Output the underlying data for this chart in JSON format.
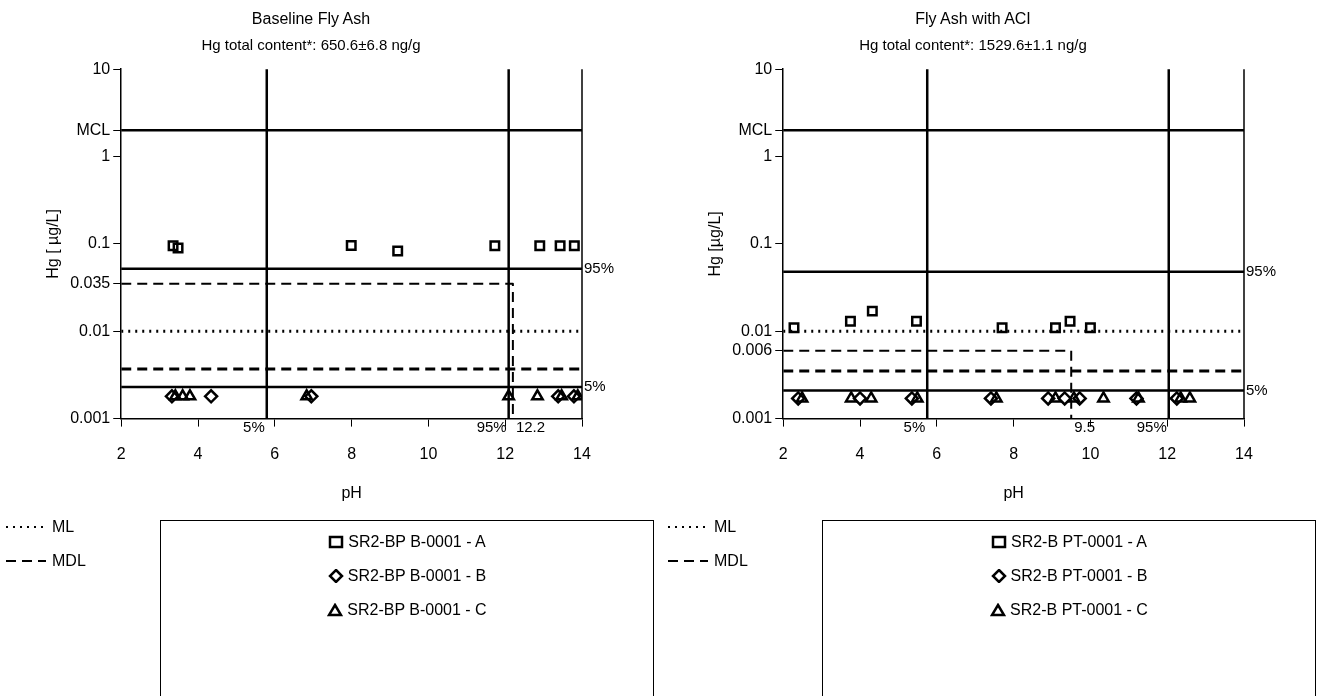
{
  "chart_data": [
    {
      "type": "scatter",
      "title": "Baseline Fly Ash",
      "subtitle": "Hg total content*: 650.6±6.8 ng/g",
      "xlabel": "pH",
      "ylabel": "Hg [ µg/L]",
      "log": "y",
      "grid": false,
      "legend": "bottom",
      "xlim": [
        2,
        14
      ],
      "xticks": [
        2,
        4,
        6,
        8,
        10,
        12,
        14
      ],
      "ylim": [
        0.001,
        10
      ],
      "yticks": [
        0.001,
        0.01,
        0.035,
        0.1,
        1,
        {
          "value": 2,
          "label": "MCL"
        },
        10
      ],
      "series": [
        {
          "name": "ML",
          "type": "line",
          "x": [
            2,
            14
          ],
          "values": [
            0.01,
            0.01
          ],
          "color": "#000000",
          "line_style": "dotted",
          "marker": "none"
        },
        {
          "name": "MDL",
          "type": "line",
          "x": [
            2,
            14
          ],
          "values": [
            0.0037,
            0.0037
          ],
          "color": "#000000",
          "line_style": "dashed",
          "marker": "none"
        },
        {
          "type": "line",
          "x": [
            2,
            12.2,
            12.2
          ],
          "values": [
            0.035,
            0.035,
            0.001
          ],
          "color": "#000000",
          "line_style": "dashed",
          "marker": "none"
        },
        {
          "name": "SR2-BP B-0001 - A",
          "x": [
            3.35,
            3.48,
            7.99,
            9.2,
            11.73,
            12.9,
            13.43,
            13.8
          ],
          "values": [
            0.095,
            0.09,
            0.096,
            0.083,
            0.095,
            0.095,
            0.095,
            0.095
          ],
          "color": "#000000",
          "marker": "square"
        },
        {
          "name": "SR2-BP B-0001 - B",
          "x": [
            3.32,
            4.34,
            6.95,
            13.38,
            13.79
          ],
          "values": [
            0.0018,
            0.0018,
            0.0018,
            0.0018,
            0.0018
          ],
          "color": "#000000",
          "marker": "diamond"
        },
        {
          "name": "SR2-BP B-0001 - C",
          "x": [
            3.41,
            3.6,
            3.79,
            6.83,
            12.09,
            12.84,
            13.47,
            13.89
          ],
          "values": [
            0.0018,
            0.0018,
            0.0018,
            0.0018,
            0.0018,
            0.0018,
            0.0018,
            0.0018
          ],
          "color": "#000000",
          "marker": "triangle"
        }
      ],
      "ref_lines": [
        {
          "axis": "y",
          "value": 2
        },
        {
          "axis": "y",
          "value": 0.052
        },
        {
          "axis": "y",
          "value": 0.0023
        },
        {
          "axis": "x",
          "value": 5.79
        },
        {
          "axis": "x",
          "value": 12.09
        }
      ],
      "annotations": [
        {
          "text": "95%",
          "x": 14,
          "y": 0.052
        },
        {
          "text": "5%",
          "x": 14,
          "y": 0.0023
        },
        {
          "text": "5%",
          "x": 5.79,
          "y": 0.001
        },
        {
          "text": "95%",
          "x": 12.09,
          "y": 0.001
        },
        {
          "text": "12.2",
          "x": 12.2,
          "y": 0.001
        }
      ]
    },
    {
      "type": "scatter",
      "title": "Fly Ash with ACI",
      "subtitle": "Hg total content*: 1529.6±1.1 ng/g",
      "xlabel": "pH",
      "ylabel": "Hg [µg/L]",
      "log": "y",
      "grid": false,
      "legend": "bottom",
      "xlim": [
        2,
        14
      ],
      "xticks": [
        2,
        4,
        6,
        8,
        10,
        12,
        14
      ],
      "ylim": [
        0.001,
        10
      ],
      "yticks": [
        0.001,
        0.006,
        0.01,
        0.1,
        1,
        {
          "value": 2,
          "label": "MCL"
        },
        10
      ],
      "series": [
        {
          "name": "ML",
          "type": "line",
          "x": [
            2,
            14
          ],
          "values": [
            0.01,
            0.01
          ],
          "color": "#000000",
          "line_style": "dotted",
          "marker": "none"
        },
        {
          "name": "MDL",
          "type": "line",
          "x": [
            2,
            14
          ],
          "values": [
            0.0035,
            0.0035
          ],
          "color": "#000000",
          "line_style": "dashed",
          "marker": "none"
        },
        {
          "type": "line",
          "x": [
            2,
            9.5,
            9.5
          ],
          "values": [
            0.006,
            0.006,
            0.001
          ],
          "color": "#000000",
          "line_style": "dashed",
          "marker": "none"
        },
        {
          "name": "SR2-B PT-0001 - A",
          "x": [
            2.28,
            3.75,
            4.32,
            5.47,
            7.7,
            9.09,
            9.47,
            10.0
          ],
          "values": [
            0.011,
            0.013,
            0.017,
            0.013,
            0.011,
            0.011,
            0.013,
            0.011
          ],
          "color": "#000000",
          "marker": "square"
        },
        {
          "name": "SR2-B PT-0001 - B",
          "x": [
            2.39,
            4.0,
            5.35,
            7.41,
            8.9,
            9.33,
            9.72,
            11.2,
            12.25
          ],
          "values": [
            0.0017,
            0.0017,
            0.0017,
            0.0017,
            0.0017,
            0.0017,
            0.0017,
            0.0017,
            0.0017
          ],
          "color": "#000000",
          "marker": "diamond"
        },
        {
          "name": "SR2-B PT-0001 - C",
          "x": [
            2.49,
            3.77,
            4.29,
            5.49,
            7.55,
            9.09,
            9.57,
            10.34,
            11.25,
            12.35,
            12.59
          ],
          "values": [
            0.0017,
            0.0017,
            0.0017,
            0.0017,
            0.0017,
            0.0017,
            0.0017,
            0.0017,
            0.0017,
            0.0017,
            0.0017
          ],
          "color": "#000000",
          "marker": "triangle"
        }
      ],
      "ref_lines": [
        {
          "axis": "y",
          "value": 2
        },
        {
          "axis": "y",
          "value": 0.048
        },
        {
          "axis": "y",
          "value": 0.0021
        },
        {
          "axis": "x",
          "value": 5.75
        },
        {
          "axis": "x",
          "value": 12.04
        }
      ],
      "annotations": [
        {
          "text": "95%",
          "x": 14,
          "y": 0.048
        },
        {
          "text": "5%",
          "x": 14,
          "y": 0.0021
        },
        {
          "text": "5%",
          "x": 5.75,
          "y": 0.001
        },
        {
          "text": "95%",
          "x": 12.04,
          "y": 0.001
        },
        {
          "text": "9.5",
          "x": 9.5,
          "y": 0.001
        }
      ]
    }
  ]
}
